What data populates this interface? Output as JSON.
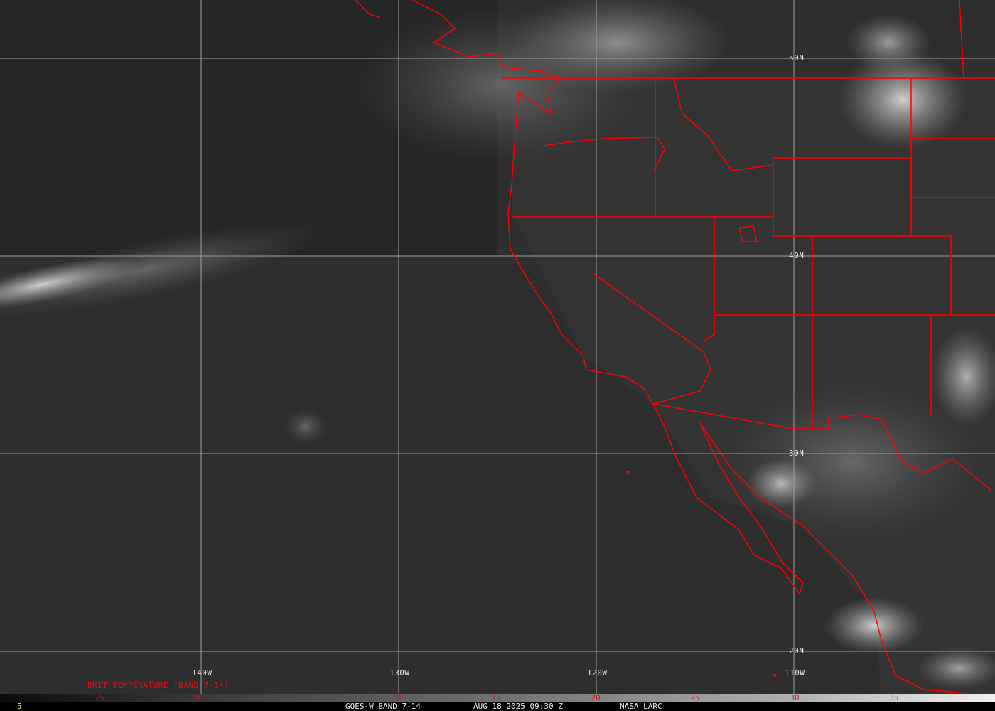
{
  "map": {
    "longitude_labels": [
      "140W",
      "130W",
      "120W",
      "110W"
    ],
    "latitude_labels": [
      "50N",
      "40N",
      "30N",
      "20N"
    ],
    "border_color": "#ff0000",
    "grid_color": "#a0a0a0"
  },
  "colorbar": {
    "title": "BRIT TEMPERATURE (BAND 7-14)",
    "ticks": [
      "-5",
      "0",
      "5",
      "10",
      "15",
      "20",
      "25",
      "30",
      "35"
    ],
    "tick_color": "#e01010"
  },
  "footer": {
    "frame_number": "5",
    "satellite": "GOES-W BAND 7-14",
    "datetime": "AUG 18 2025 09:30 Z",
    "source": "NASA LARC"
  }
}
